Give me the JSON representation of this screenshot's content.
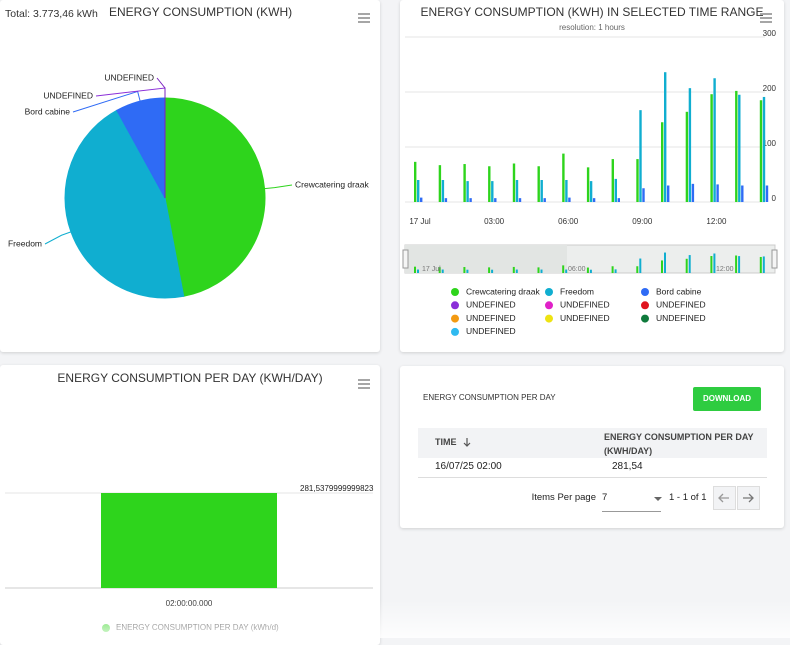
{
  "total": "Total: 3.773,46 kWh",
  "chart_data": [
    {
      "type": "pie",
      "title": "ENERGY CONSUMPTION (KWH)",
      "categories": [
        "Crewcatering draak",
        "Freedom",
        "Bord cabine",
        "UNDEFINED",
        "UNDEFINED"
      ],
      "values": [
        47,
        45,
        8,
        0,
        0
      ],
      "colors": [
        "#2ed41c",
        "#10aed0",
        "#2f6bf5",
        "#8b2fd8",
        "#7b22c0"
      ]
    },
    {
      "type": "bar",
      "title": "ENERGY CONSUMPTION (KWH) IN SELECTED TIME RANGE",
      "subtitle": "resolution: 1 hours",
      "categories": [
        "17 Jul",
        null,
        null,
        "03:00",
        null,
        null,
        "06:00",
        null,
        null,
        "09:00",
        null,
        null,
        "12:00",
        null,
        null
      ],
      "ylim": [
        0,
        300
      ],
      "yticks": [
        0,
        100,
        200,
        300
      ],
      "grid": true,
      "navigator_labels": [
        "17 Jul",
        "06:00",
        "12:00"
      ],
      "series": [
        {
          "name": "Crewcatering draak",
          "color": "#2ed41c",
          "values": [
            73,
            67,
            69,
            65,
            70,
            65,
            88,
            63,
            78,
            78,
            145,
            164,
            196,
            202,
            185
          ]
        },
        {
          "name": "Freedom",
          "color": "#10aed0",
          "values": [
            40,
            40,
            38,
            38,
            40,
            40,
            40,
            38,
            42,
            167,
            236,
            207,
            225,
            195,
            191
          ]
        },
        {
          "name": "Bord cabine",
          "color": "#2f6bf5",
          "values": [
            8,
            7,
            7,
            7,
            7,
            7,
            8,
            7,
            7,
            25,
            30,
            33,
            32,
            30,
            30
          ]
        },
        {
          "name": "UNDEFINED",
          "color": "#8b2fd8",
          "values": [
            null,
            null,
            null,
            null,
            null,
            null,
            null,
            null,
            null,
            null,
            null,
            null,
            null,
            null,
            null
          ]
        },
        {
          "name": "UNDEFINED",
          "color": "#e021c8",
          "values": [
            null,
            null,
            null,
            null,
            null,
            null,
            null,
            null,
            null,
            null,
            null,
            null,
            null,
            null,
            null
          ]
        },
        {
          "name": "UNDEFINED",
          "color": "#e0141e",
          "values": [
            null,
            null,
            null,
            null,
            null,
            null,
            null,
            null,
            null,
            null,
            null,
            null,
            null,
            null,
            null
          ]
        },
        {
          "name": "UNDEFINED",
          "color": "#f39a12",
          "values": [
            null,
            null,
            null,
            null,
            null,
            null,
            null,
            null,
            null,
            null,
            null,
            null,
            null,
            null,
            null
          ]
        },
        {
          "name": "UNDEFINED",
          "color": "#eee312",
          "values": [
            null,
            null,
            null,
            null,
            null,
            null,
            null,
            null,
            null,
            null,
            null,
            null,
            null,
            null,
            null
          ]
        },
        {
          "name": "UNDEFINED",
          "color": "#0f7a3c",
          "values": [
            null,
            null,
            null,
            null,
            null,
            null,
            null,
            null,
            null,
            null,
            null,
            null,
            null,
            null,
            null
          ]
        },
        {
          "name": "UNDEFINED",
          "color": "#2fbaf0",
          "values": [
            null,
            null,
            null,
            null,
            null,
            null,
            null,
            null,
            null,
            null,
            null,
            null,
            null,
            null,
            null
          ]
        }
      ]
    },
    {
      "type": "bar",
      "title": "ENERGY CONSUMPTION PER DAY (KWH/DAY)",
      "categories": [
        "02:00:00.000"
      ],
      "values": [
        281.5379999999823
      ],
      "value_labels": [
        "281,5379999999823"
      ],
      "ylim": [
        0,
        281.5379999999823
      ],
      "color": "#2ed41c",
      "legend": "ENERGY CONSUMPTION PER DAY (kWh/d)"
    }
  ],
  "table_panel": {
    "title": "ENERGY CONSUMPTION PER DAY",
    "button": "DOWNLOAD",
    "columns": [
      "TIME",
      "ENERGY CONSUMPTION PER DAY (KWH/DAY)"
    ],
    "rows": [
      [
        "16/07/25 02:00",
        "281,54"
      ]
    ],
    "items_per_page_label": "Items Per page",
    "items_per_page": "7",
    "range": "1 - 1 of 1"
  }
}
